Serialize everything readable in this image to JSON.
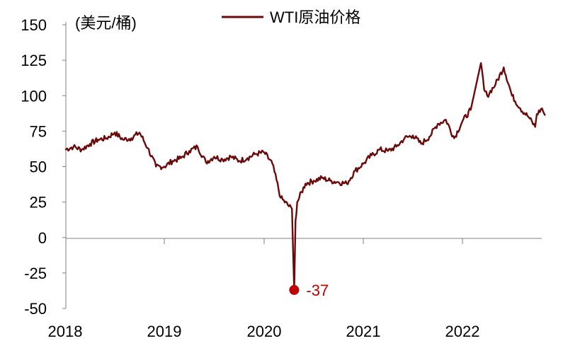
{
  "chart_data": {
    "type": "line",
    "y_unit_label": "(美元/桶)",
    "ylim": [
      -50,
      150
    ],
    "y_ticks": [
      150,
      125,
      100,
      75,
      50,
      25,
      0,
      -25,
      -50
    ],
    "x_tick_labels": [
      "2018",
      "2019",
      "2020",
      "2021",
      "2022"
    ],
    "x_range": [
      "2018-01",
      "2022-11"
    ],
    "legend_position": "top",
    "grid": false,
    "colors": {
      "line": "#6b0a0a",
      "annotation": "#c00000",
      "axis": "#808080"
    },
    "series": [
      {
        "name": "WTI原油价格",
        "points": [
          [
            "2018-01",
            62
          ],
          [
            "2018-02",
            64
          ],
          [
            "2018-03",
            62
          ],
          [
            "2018-04",
            66
          ],
          [
            "2018-05",
            69
          ],
          [
            "2018-06",
            70
          ],
          [
            "2018-07",
            74
          ],
          [
            "2018-08",
            69
          ],
          [
            "2018-09",
            70
          ],
          [
            "2018-10",
            74
          ],
          [
            "2018-11",
            63
          ],
          [
            "2018-12",
            50
          ],
          [
            "2019-01",
            50
          ],
          [
            "2019-02",
            54
          ],
          [
            "2019-03",
            56
          ],
          [
            "2019-04",
            61
          ],
          [
            "2019-05",
            64
          ],
          [
            "2019-06",
            53
          ],
          [
            "2019-07",
            57
          ],
          [
            "2019-08",
            55
          ],
          [
            "2019-09",
            57
          ],
          [
            "2019-10",
            54
          ],
          [
            "2019-11",
            56
          ],
          [
            "2019-12",
            59
          ],
          [
            "2020-01",
            60
          ],
          [
            "2020-02",
            52
          ],
          [
            "2020-03",
            28
          ],
          [
            "2020-04-12",
            20
          ],
          [
            "2020-04-20",
            -37
          ],
          [
            "2020-04-25",
            12
          ],
          [
            "2020-05",
            25
          ],
          [
            "2020-06",
            38
          ],
          [
            "2020-07",
            40
          ],
          [
            "2020-08",
            42
          ],
          [
            "2020-09",
            40
          ],
          [
            "2020-10",
            39
          ],
          [
            "2020-11",
            38
          ],
          [
            "2020-12",
            47
          ],
          [
            "2021-01",
            52
          ],
          [
            "2021-02",
            58
          ],
          [
            "2021-03",
            62
          ],
          [
            "2021-04",
            61
          ],
          [
            "2021-05",
            64
          ],
          [
            "2021-06",
            70
          ],
          [
            "2021-07",
            72
          ],
          [
            "2021-08",
            66
          ],
          [
            "2021-09",
            71
          ],
          [
            "2021-10",
            80
          ],
          [
            "2021-11",
            83
          ],
          [
            "2021-12",
            70
          ],
          [
            "2022-01",
            82
          ],
          [
            "2022-02",
            90
          ],
          [
            "2022-03-08",
            123
          ],
          [
            "2022-03-20",
            104
          ],
          [
            "2022-04",
            100
          ],
          [
            "2022-05",
            108
          ],
          [
            "2022-06",
            120
          ],
          [
            "2022-07",
            100
          ],
          [
            "2022-08",
            91
          ],
          [
            "2022-09",
            85
          ],
          [
            "2022-09-25",
            78
          ],
          [
            "2022-10",
            87
          ],
          [
            "2022-10-20",
            91
          ],
          [
            "2022-11",
            86
          ]
        ]
      }
    ],
    "annotations": [
      {
        "x": "2020-04-20",
        "y": -37,
        "label": "-37"
      }
    ]
  }
}
